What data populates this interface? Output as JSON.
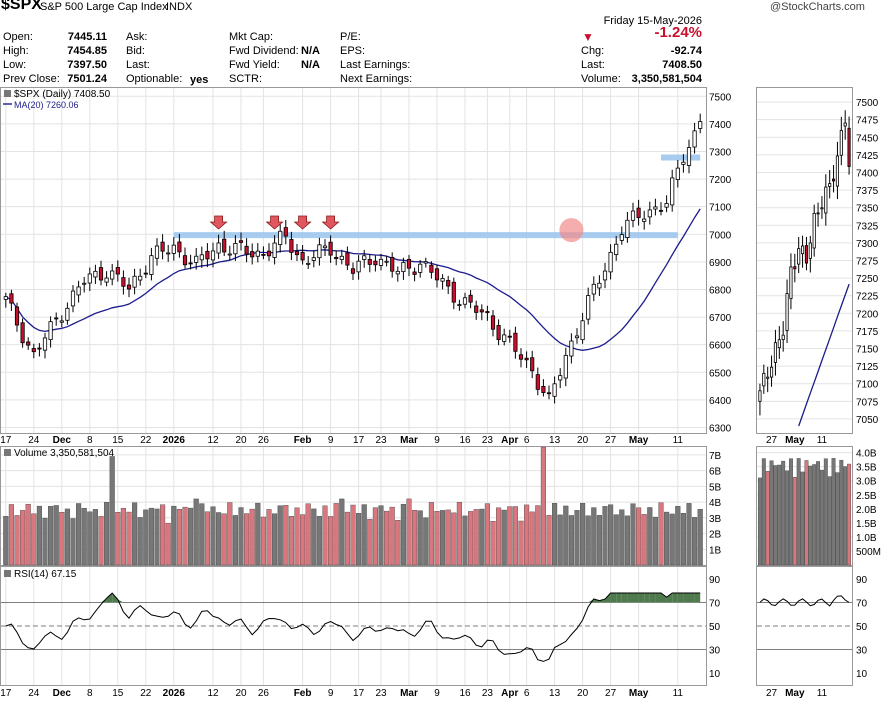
{
  "header": {
    "symbol": "$SPX",
    "name": "S&P 500 Large Cap Index",
    "exchange": "INDX",
    "watermark": "@StockCharts.com",
    "date": "Friday  15-May-2026",
    "pct_change": "-1.24%",
    "fields": {
      "open_label": "Open:",
      "open": "7445.11",
      "high_label": "High:",
      "high": "7454.85",
      "low_label": "Low:",
      "low": "7397.50",
      "prev_label": "Prev Close:",
      "prev": "7501.24",
      "ask_label": "Ask:",
      "bid_label": "Bid:",
      "last_label": "Last:",
      "optionable_label": "Optionable:",
      "optionable": "yes",
      "mktcap_label": "Mkt Cap:",
      "fwddiv_label": "Fwd Dividend:",
      "fwddiv": "N/A",
      "fwdyield_label": "Fwd Yield:",
      "fwdyield": "N/A",
      "sctr_label": "SCTR:",
      "pe_label": "P/E:",
      "eps_label": "EPS:",
      "lastearn_label": "Last Earnings:",
      "nextearn_label": "Next Earnings:",
      "chg_label": "Chg:",
      "chg": "-92.74",
      "last2_label": "Last:",
      "last2": "7408.50",
      "volume_label": "Volume:",
      "volume": "3,350,581,504"
    }
  },
  "colors": {
    "up": "#ffffff",
    "down": "#c8102e",
    "ma": "#1c1c8c",
    "hline": "#9ec7ee",
    "vol_up": "#777777",
    "vol_down": "#d9777f",
    "rsi": "#000000",
    "rsi_fill": "#4e7a4e",
    "arrow": "#e0575f"
  },
  "chart_data": [
    {
      "type": "candlestick",
      "title": "$SPX (Daily) 7408.50",
      "legend": "MA(20) 7260.06",
      "ylim": [
        6280,
        7530
      ],
      "y_ticks": [
        6300,
        6400,
        6500,
        6600,
        6700,
        6800,
        6900,
        7000,
        7100,
        7200,
        7300,
        7400,
        7500
      ],
      "x_tick_labels": [
        "17",
        "24",
        "Dec",
        "8",
        "15",
        "22",
        "2026",
        "12",
        "20",
        "26",
        "Feb",
        "9",
        "17",
        "23",
        "Mar",
        "9",
        "16",
        "23",
        "Apr",
        "6",
        "13",
        "20",
        "27",
        "May",
        "11"
      ],
      "annotations": [
        {
          "type": "support_line",
          "y": 6997,
          "from_index": 30,
          "to_index": 120
        },
        {
          "type": "support_line",
          "y": 7278,
          "from_index": 117,
          "to_index": 124
        },
        {
          "type": "circle",
          "index": 101,
          "y": 7015
        },
        {
          "type": "down_arrow",
          "indices": [
            38,
            48,
            53,
            58
          ]
        }
      ],
      "ma_name": "MA(20)",
      "ma_last": 7260.06
    },
    {
      "type": "bar",
      "title": "Volume 3,350,581,504",
      "ylim": [
        0,
        7500000000
      ],
      "y_ticks": [
        "1B",
        "2B",
        "3B",
        "4B",
        "5B",
        "6B",
        "7B"
      ]
    },
    {
      "type": "line",
      "title": "RSI(14) 67.15",
      "ylim": [
        0,
        100
      ],
      "y_ticks": [
        10,
        30,
        50,
        70,
        90
      ],
      "levels": [
        30,
        50,
        70
      ]
    },
    {
      "type": "candlestick",
      "title": "",
      "ylim": [
        7030,
        7520
      ],
      "y_ticks": [
        7050,
        7075,
        7100,
        7125,
        7150,
        7175,
        7200,
        7225,
        7250,
        7275,
        7300,
        7325,
        7350,
        7375,
        7400,
        7425,
        7450,
        7475,
        7500
      ],
      "x_tick_labels": [
        "27",
        "May",
        "11"
      ],
      "vol_ticks": [
        "500M",
        "1.0B",
        "1.5B",
        "2.0B",
        "2.5B",
        "3.0B",
        "3.5B",
        "4.0B"
      ],
      "rsi_ticks": [
        10,
        30,
        50,
        70,
        90
      ]
    }
  ]
}
